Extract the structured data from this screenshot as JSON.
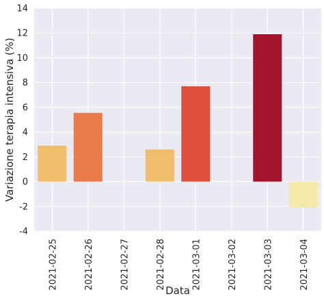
{
  "chart_data": {
    "type": "bar",
    "title": "",
    "xlabel": "Data",
    "ylabel": "Variazione terapia intensiva (%)",
    "ylim": [
      -4,
      14
    ],
    "yticks": [
      -4,
      -2,
      0,
      2,
      4,
      6,
      8,
      10,
      12,
      14
    ],
    "grid": true,
    "legend": "none",
    "categories": [
      "2021-02-25",
      "2021-02-26",
      "2021-02-27",
      "2021-02-28",
      "2021-03-01",
      "2021-03-02",
      "2021-03-03",
      "2021-03-04"
    ],
    "values": [
      2.9,
      5.55,
      0,
      2.6,
      7.7,
      0,
      11.9,
      -2.1
    ],
    "bar_colors": [
      "#f0bd6c",
      "#ea7c4c",
      "#f9c774",
      "#f0bd6c",
      "#e24e3c",
      "#f9c774",
      "#a3152f",
      "#f5e9a9"
    ],
    "style": {
      "background": "#eaeaf2",
      "grid_color": "#ffffff",
      "text_color": "#262626"
    }
  }
}
